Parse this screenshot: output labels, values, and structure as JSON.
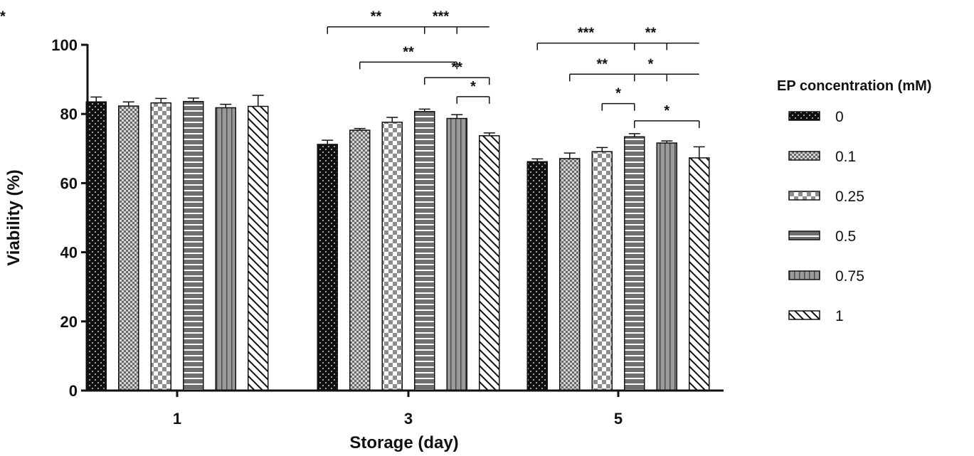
{
  "chart_data": {
    "type": "bar",
    "categories": [
      "1",
      "3",
      "5"
    ],
    "xlabel": "Storage (day)",
    "ylabel": "Viability (%)",
    "ylim": [
      0,
      100
    ],
    "yticks": [
      0,
      20,
      40,
      60,
      80,
      100
    ],
    "grid": false,
    "legend": {
      "title": "EP concentration (mM)",
      "position": "right"
    },
    "series": [
      {
        "name": "0",
        "pattern": "dots",
        "values": [
          83.5,
          71.2,
          66.2
        ],
        "errors": [
          1.4,
          1.2,
          0.8
        ]
      },
      {
        "name": "0.1",
        "pattern": "fine-check",
        "values": [
          82.3,
          75.3,
          67.1
        ],
        "errors": [
          1.2,
          0.5,
          1.6
        ]
      },
      {
        "name": "0.25",
        "pattern": "checker",
        "values": [
          83.2,
          77.6,
          69.1
        ],
        "errors": [
          1.3,
          1.4,
          1.2
        ]
      },
      {
        "name": "0.5",
        "pattern": "h-stripes",
        "values": [
          83.6,
          80.7,
          73.4
        ],
        "errors": [
          1.0,
          0.7,
          0.9
        ]
      },
      {
        "name": "0.75",
        "pattern": "v-stripes",
        "values": [
          81.8,
          78.7,
          71.6
        ],
        "errors": [
          1.0,
          1.1,
          0.6
        ]
      },
      {
        "name": "1",
        "pattern": "diagonal",
        "values": [
          82.2,
          73.7,
          67.3
        ],
        "errors": [
          3.2,
          0.8,
          3.2
        ]
      }
    ],
    "significance": [
      {
        "group": 1,
        "from": 0,
        "to": 5,
        "tiers": [
          0,
          3,
          4
        ],
        "labels": [
          "**",
          "***",
          "**"
        ],
        "y": 105.2
      },
      {
        "group": 1,
        "from": 1,
        "to": 4,
        "labels": [
          "**"
        ],
        "y": 95.0
      },
      {
        "group": 1,
        "from": 3,
        "to": 5,
        "labels": [
          "**"
        ],
        "y": 90.5
      },
      {
        "group": 1,
        "from": 4,
        "to": 5,
        "labels": [
          "*"
        ],
        "y": 85.0
      },
      {
        "group": 2,
        "from": 0,
        "to": 5,
        "tiers": [
          0,
          3,
          4
        ],
        "labels": [
          "***",
          "**"
        ],
        "y": 100.5
      },
      {
        "group": 2,
        "from": 1,
        "to": 5,
        "tiers": [
          1,
          3,
          4
        ],
        "labels": [
          "**",
          "*"
        ],
        "y": 91.5
      },
      {
        "group": 2,
        "from": 2,
        "to": 3,
        "labels": [
          "*"
        ],
        "y": 83.0
      },
      {
        "group": 2,
        "from": 3,
        "to": 5,
        "labels": [
          "*"
        ],
        "y": 78.0
      }
    ]
  }
}
